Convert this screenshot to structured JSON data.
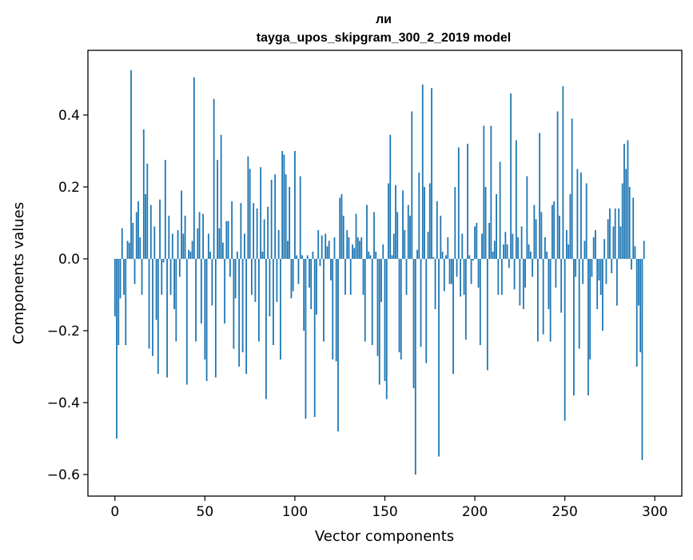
{
  "chart_data": {
    "type": "bar",
    "title": "ли",
    "subtitle": "tayga_upos_skipgram_300_2_2019 model",
    "xlabel": "Vector components",
    "ylabel": "Components values",
    "xlim": [
      -15,
      315
    ],
    "ylim": [
      -0.66,
      0.58
    ],
    "xticks": [
      0,
      50,
      100,
      150,
      200,
      250,
      300
    ],
    "xtick_labels": [
      "0",
      "50",
      "100",
      "150",
      "200",
      "250",
      "300"
    ],
    "yticks": [
      -0.6,
      -0.4,
      -0.2,
      0.0,
      0.2,
      0.4
    ],
    "ytick_labels": [
      "−0.6",
      "−0.4",
      "−0.2",
      "0.0",
      "0.2",
      "0.4"
    ],
    "bar_color": "#1f77b4",
    "grid": false,
    "series": [
      {
        "name": "ли",
        "values": [
          -0.16,
          -0.5,
          -0.24,
          -0.11,
          0.085,
          -0.1,
          -0.24,
          0.05,
          0.045,
          0.525,
          0.1,
          -0.07,
          0.13,
          0.16,
          0.06,
          -0.1,
          0.36,
          0.18,
          0.265,
          -0.25,
          0.15,
          -0.27,
          0.09,
          -0.17,
          -0.32,
          0.165,
          -0.1,
          -0.01,
          0.275,
          -0.33,
          0.12,
          -0.1,
          0.07,
          -0.14,
          -0.23,
          0.08,
          -0.05,
          0.19,
          0.07,
          0.12,
          -0.35,
          0.025,
          0.02,
          0.05,
          0.505,
          -0.23,
          0.085,
          0.13,
          -0.18,
          0.125,
          -0.28,
          -0.34,
          0.07,
          0.02,
          -0.13,
          0.445,
          -0.33,
          0.275,
          0.085,
          0.345,
          0.045,
          -0.18,
          0.105,
          0.105,
          -0.05,
          0.16,
          -0.25,
          -0.11,
          0.02,
          -0.3,
          0.155,
          -0.26,
          0.07,
          -0.32,
          0.285,
          0.25,
          -0.1,
          0.155,
          -0.12,
          0.14,
          -0.23,
          0.255,
          0.02,
          0.11,
          -0.39,
          0.145,
          -0.16,
          0.22,
          -0.24,
          0.235,
          -0.12,
          0.08,
          -0.28,
          0.3,
          0.29,
          0.235,
          0.05,
          0.2,
          -0.11,
          -0.09,
          0.3,
          0.01,
          -0.07,
          0.23,
          0.01,
          -0.2,
          -0.445,
          0.01,
          -0.08,
          -0.14,
          0.02,
          -0.44,
          -0.155,
          0.08,
          -0.02,
          0.065,
          -0.23,
          0.07,
          0.035,
          0.05,
          -0.06,
          -0.28,
          0.06,
          -0.285,
          -0.48,
          0.17,
          0.18,
          0.12,
          -0.1,
          0.08,
          0.06,
          -0.1,
          0.04,
          0.03,
          0.125,
          0.06,
          0.05,
          0.06,
          -0.1,
          -0.23,
          0.15,
          0.02,
          0.01,
          -0.24,
          0.13,
          0.02,
          -0.27,
          -0.35,
          -0.12,
          0.04,
          -0.34,
          -0.39,
          0.21,
          0.345,
          0.01,
          0.07,
          0.205,
          0.13,
          -0.26,
          -0.28,
          0.19,
          0.08,
          -0.1,
          0.15,
          0.12,
          0.41,
          -0.36,
          -0.6,
          0.025,
          0.24,
          -0.245,
          0.485,
          0.2,
          -0.29,
          0.075,
          0.21,
          0.475,
          0.005,
          -0.14,
          0.16,
          -0.55,
          0.12,
          0.02,
          -0.09,
          0.01,
          0.06,
          -0.07,
          -0.07,
          -0.32,
          0.2,
          -0.05,
          0.31,
          -0.105,
          0.07,
          -0.1,
          -0.225,
          0.32,
          0.01,
          -0.07,
          -0.005,
          0.09,
          0.1,
          -0.08,
          -0.24,
          0.07,
          0.37,
          0.2,
          -0.31,
          0.1,
          0.37,
          0.02,
          0.05,
          0.18,
          -0.1,
          0.27,
          -0.1,
          0.04,
          0.075,
          0.04,
          -0.025,
          0.46,
          0.07,
          -0.085,
          0.33,
          0.06,
          -0.13,
          0.09,
          -0.14,
          -0.08,
          0.23,
          0.04,
          0.02,
          -0.05,
          0.15,
          0.11,
          -0.23,
          0.35,
          0.13,
          -0.21,
          0.06,
          0.02,
          -0.14,
          -0.23,
          0.15,
          0.16,
          -0.08,
          0.41,
          0.12,
          -0.15,
          0.48,
          -0.45,
          0.08,
          0.04,
          0.18,
          0.39,
          -0.38,
          -0.05,
          0.25,
          -0.25,
          0.24,
          -0.07,
          0.05,
          0.21,
          -0.38,
          -0.28,
          -0.05,
          0.06,
          0.08,
          -0.14,
          -0.06,
          -0.1,
          -0.2,
          0.055,
          -0.07,
          0.11,
          0.14,
          -0.04,
          0.09,
          0.14,
          -0.13,
          0.14,
          0.09,
          0.21,
          0.32,
          0.25,
          0.33,
          0.2,
          -0.03,
          0.17,
          0.035,
          -0.3,
          -0.13,
          -0.26,
          -0.56,
          0.05
        ]
      }
    ]
  }
}
